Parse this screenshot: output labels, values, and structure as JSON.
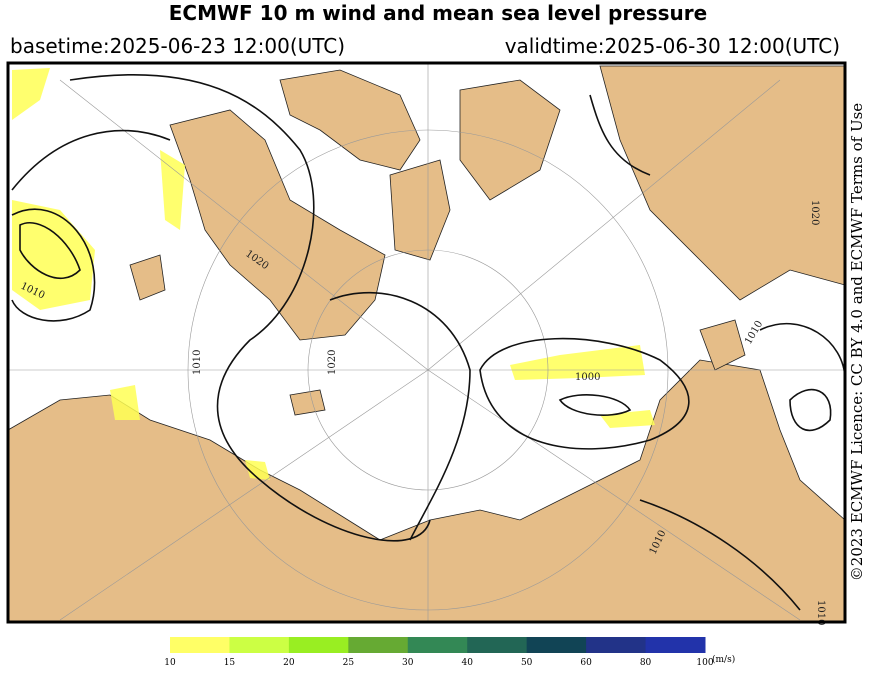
{
  "header": {
    "title": "ECMWF 10 m wind and mean sea level pressure",
    "basetime": "basetime:2025-06-23 12:00(UTC)",
    "validtime": "validtime:2025-06-30 12:00(UTC)"
  },
  "map": {
    "contour_labels": [
      "1020",
      "1020",
      "1010",
      "1010",
      "1010",
      "1000",
      "1010",
      "1010",
      "1020"
    ]
  },
  "credit": "©2023 ECMWF Licence: CC BY 4.0 and ECMWF Terms of Use",
  "colorbar": {
    "ticks": [
      "10",
      "15",
      "20",
      "25",
      "30",
      "40",
      "50",
      "60",
      "80",
      "100"
    ],
    "colors": [
      "#ffff66",
      "#ccff44",
      "#99ee22",
      "#66aa33",
      "#338855",
      "#226655",
      "#114455",
      "#223388",
      "#2233aa"
    ],
    "unit": "(m/s)"
  }
}
